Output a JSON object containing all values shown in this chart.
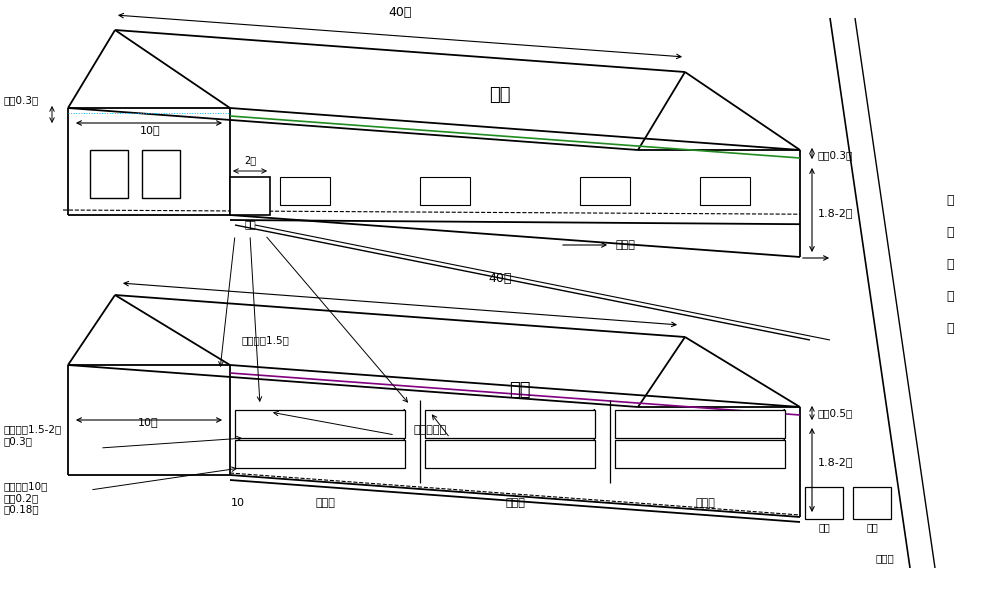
{
  "bg": "#ffffff",
  "lc": "#000000",
  "gc": "#228B22",
  "pc": "#800080",
  "top": {
    "label": "主棚",
    "d40": "40米",
    "d10": "10米",
    "eave_l": "屋檐0.3米",
    "eave_r": "屋檐0.3米",
    "h_label": "1.8-2米",
    "gate": "栏门",
    "gate_d": "2米",
    "drain": "排水沟"
  },
  "bot": {
    "label": "次棚",
    "d40": "40米",
    "d10": "10米",
    "eave_r": "屋檐0.5米",
    "h_label": "1.8-2米",
    "pen": "栏舍间距1.5米",
    "trough": "饮水槽挡板",
    "sport": "运动场",
    "inlet": "进口",
    "outlet": "出口",
    "settle": "沉淀池",
    "gutter": "地沟：宽1.5-2米\n深0.3米",
    "trough_spec": "水槽：长10米\n内宽0.2米\n高0.18米",
    "n10": "10"
  },
  "side": [
    "鸭",
    "场",
    "排",
    "水",
    "沟"
  ]
}
